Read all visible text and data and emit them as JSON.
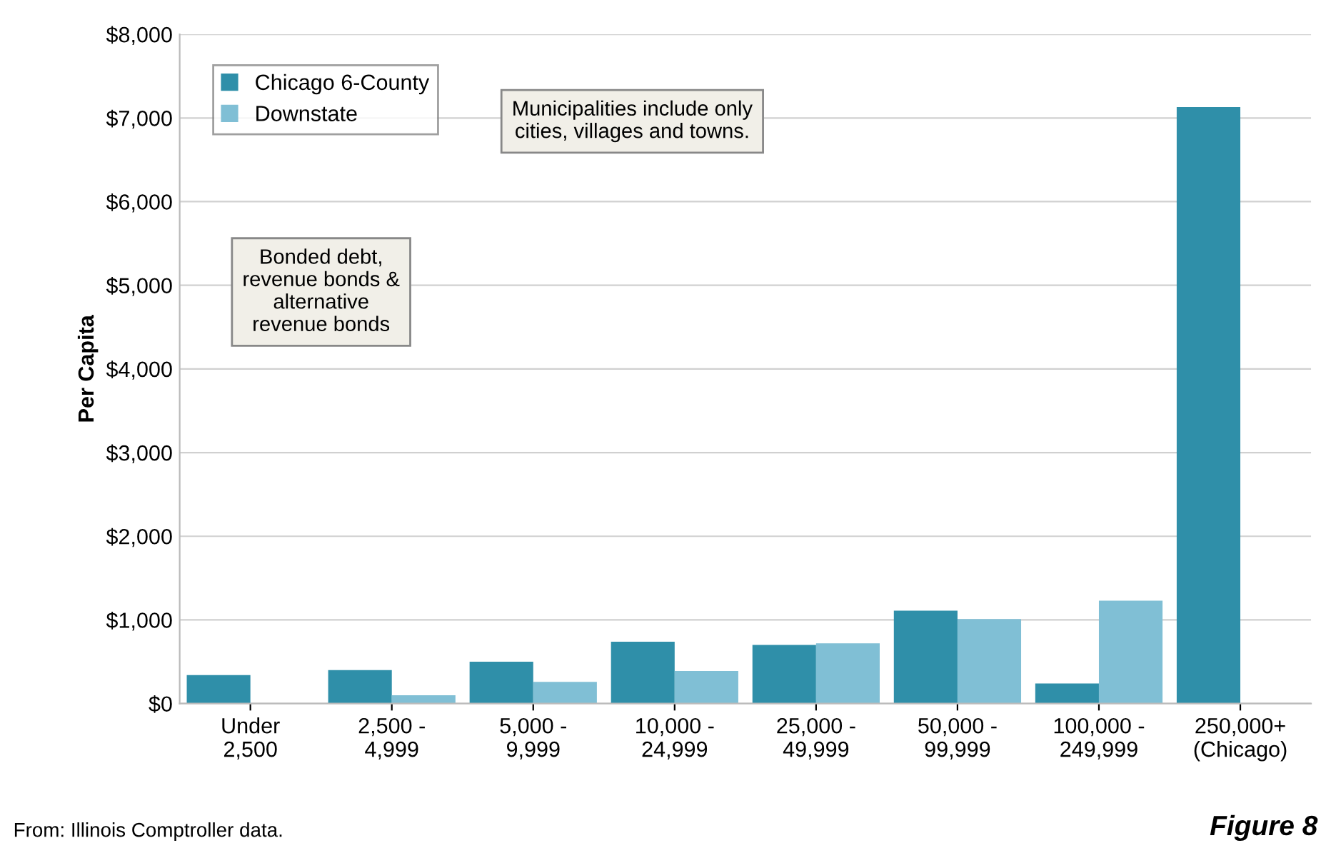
{
  "chart_data": {
    "type": "bar",
    "ylabel": "Per Capita",
    "categories": [
      "Under\n2,500",
      "2,500 -\n4,999",
      "5,000 -\n9,999",
      "10,000 -\n24,999",
      "25,000 -\n49,999",
      "50,000 -\n99,999",
      "100,000 -\n249,999",
      "250,000+\n(Chicago)"
    ],
    "series": [
      {
        "name": "Chicago 6-County",
        "color": "#2f8fa9",
        "values": [
          340,
          400,
          500,
          740,
          700,
          1110,
          240,
          7130
        ]
      },
      {
        "name": "Downstate",
        "color": "#80bfd5",
        "values": [
          null,
          100,
          260,
          390,
          720,
          1010,
          1230,
          null
        ]
      }
    ],
    "ylim": [
      0,
      8000
    ],
    "yticks": [
      {
        "value": 0,
        "label": "$0"
      },
      {
        "value": 1000,
        "label": "$1,000"
      },
      {
        "value": 2000,
        "label": "$2,000"
      },
      {
        "value": 3000,
        "label": "$3,000"
      },
      {
        "value": 4000,
        "label": "$4,000"
      },
      {
        "value": 5000,
        "label": "$5,000"
      },
      {
        "value": 6000,
        "label": "$6,000"
      },
      {
        "value": 7000,
        "label": "$7,000"
      },
      {
        "value": 8000,
        "label": "$8,000"
      }
    ],
    "grid": "y",
    "legend": "top left",
    "annotations": [
      "Municipalities include only\ncities, villages and towns.",
      "Bonded debt,\nrevenue bonds &\nalternative\nrevenue bonds",
      "From: Illinois Comptroller data.",
      "Figure 8"
    ]
  }
}
